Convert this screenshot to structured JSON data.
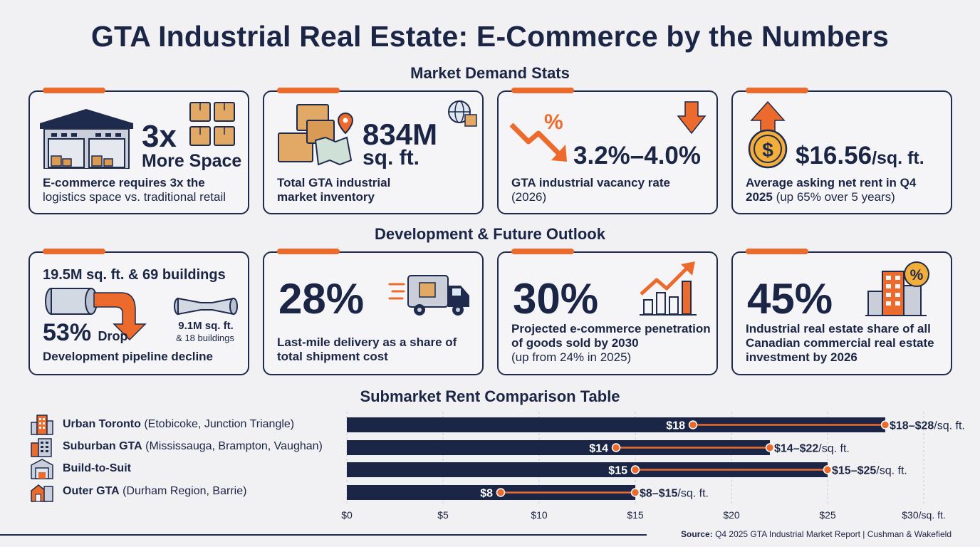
{
  "title": "GTA Industrial Real Estate: E-Commerce by the Numbers",
  "sections": {
    "demand": "Market Demand Stats",
    "development": "Development & Future Outlook",
    "submarket": "Submarket Rent Comparison Table"
  },
  "demand_cards": [
    {
      "stat": "3x",
      "stat_sub": "More Space",
      "desc_bold": "E-commerce requires 3x the",
      "desc_rest": "logistics space vs. traditional retail"
    },
    {
      "stat": "834M",
      "stat_sub": "sq. ft.",
      "desc_bold": "Total GTA industrial market inventory",
      "desc_rest": ""
    },
    {
      "stat": "3.2%–4.0%",
      "desc_bold": "GTA industrial vacancy rate",
      "desc_rest": "(2026)",
      "icon_text": "%"
    },
    {
      "stat": "$16.56",
      "stat_unit": "/sq. ft.",
      "desc_bold": "Average asking net rent in Q4 2025",
      "desc_rest": "(up 65% over 5 years)",
      "icon_text": "$"
    }
  ],
  "development_cards": [
    {
      "header": "19.5M sq. ft. & 69 buildings",
      "stat": "53%",
      "stat_suffix": "Drop",
      "side_stat": "9.1M sq. ft.",
      "side_sub": "& 18 buildings",
      "desc_bold": "Development pipeline decline",
      "desc_rest": ""
    },
    {
      "stat": "28%",
      "desc_bold": "Last-mile delivery as a share of total shipment cost",
      "desc_rest": ""
    },
    {
      "stat": "30%",
      "desc_bold": "Projected e-commerce penetration of goods sold by 2030",
      "desc_rest": "(up from 24% in 2025)"
    },
    {
      "stat": "45%",
      "desc_bold": "Industrial real estate share of all Canadian commercial real estate investment by 2026",
      "desc_rest": "",
      "icon_text": "%"
    }
  ],
  "colors": {
    "navy": "#1b2545",
    "orange": "#ec6a2c",
    "background": "#f1f1f3"
  },
  "chart_data": {
    "type": "bar",
    "title": "Submarket Rent Comparison Table",
    "categories": [
      {
        "name": "Urban Toronto",
        "detail": "(Etobicoke, Junction Triangle)",
        "icon": "office-tower-icon"
      },
      {
        "name": "Suburban GTA",
        "detail": "(Mississauga, Brampton, Vaughan)",
        "icon": "office-block-icon"
      },
      {
        "name": "Build-to-Suit",
        "detail": "",
        "icon": "warehouse-icon"
      },
      {
        "name": "Outer GTA",
        "detail": "(Durham Region, Barrie)",
        "icon": "house-building-icon"
      }
    ],
    "ranges": [
      {
        "low": 18,
        "high": 28,
        "low_label": "$18",
        "range_label": "$18–$28",
        "unit": "/sq. ft."
      },
      {
        "low": 14,
        "high": 22,
        "low_label": "$14",
        "range_label": "$14–$22",
        "unit": "/sq. ft."
      },
      {
        "low": 15,
        "high": 25,
        "low_label": "$15",
        "range_label": "$15–$25",
        "unit": "/sq. ft."
      },
      {
        "low": 8,
        "high": 15,
        "low_label": "$8",
        "range_label": "$8–$15",
        "unit": "/sq. ft."
      }
    ],
    "x_ticks": [
      "$0",
      "$5",
      "$10",
      "$15",
      "$20",
      "$25",
      "$30/sq. ft."
    ],
    "x_tick_values": [
      0,
      5,
      10,
      15,
      20,
      25,
      30
    ],
    "xlim": [
      0,
      30
    ],
    "grid": true
  },
  "source": {
    "label": "Source:",
    "text": "Q4 2025 GTA Industrial Market Report | Cushman & Wakefield"
  }
}
